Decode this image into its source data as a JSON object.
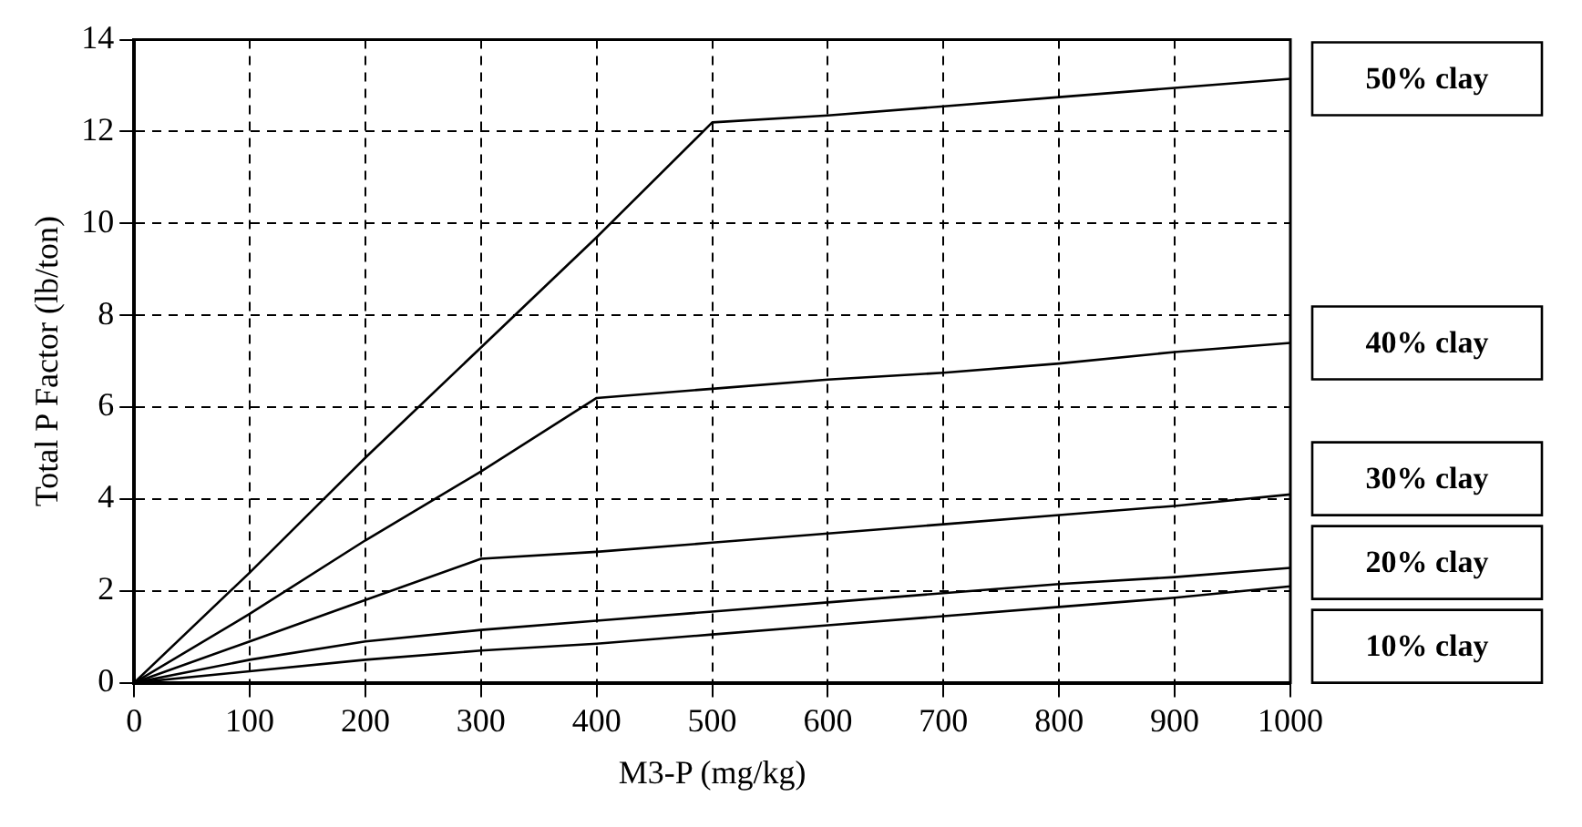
{
  "chart_data": {
    "type": "line",
    "xlabel": "M3-P (mg/kg)",
    "ylabel": "Total P Factor (lb/ton)",
    "x": [
      0,
      100,
      200,
      300,
      400,
      500,
      600,
      700,
      800,
      900,
      1000
    ],
    "series": [
      {
        "name": "50% clay",
        "color": "#000000",
        "values": [
          0,
          2.4,
          4.9,
          7.3,
          9.7,
          12.2,
          12.35,
          12.55,
          12.75,
          12.95,
          13.15
        ]
      },
      {
        "name": "40% clay",
        "color": "#000000",
        "values": [
          0,
          1.5,
          3.1,
          4.6,
          6.2,
          6.4,
          6.6,
          6.75,
          6.95,
          7.2,
          7.4
        ]
      },
      {
        "name": "30% clay",
        "color": "#000000",
        "values": [
          0,
          0.9,
          1.8,
          2.7,
          2.85,
          3.05,
          3.25,
          3.45,
          3.65,
          3.85,
          4.1
        ]
      },
      {
        "name": "20% clay",
        "color": "#000000",
        "values": [
          0,
          0.5,
          0.9,
          1.15,
          1.35,
          1.55,
          1.75,
          1.95,
          2.15,
          2.3,
          2.5
        ]
      },
      {
        "name": "10% clay",
        "color": "#000000",
        "values": [
          0,
          0.25,
          0.5,
          0.7,
          0.85,
          1.05,
          1.25,
          1.45,
          1.65,
          1.85,
          2.1
        ]
      }
    ],
    "xlim": [
      0,
      1000
    ],
    "xticks": [
      0,
      100,
      200,
      300,
      400,
      500,
      600,
      700,
      800,
      900,
      1000
    ],
    "ylim": [
      0,
      14
    ],
    "yticks": [
      0,
      2,
      4,
      6,
      8,
      10,
      12,
      14
    ],
    "grid": true,
    "legend": false,
    "marker": "none",
    "line_style": "solid"
  }
}
